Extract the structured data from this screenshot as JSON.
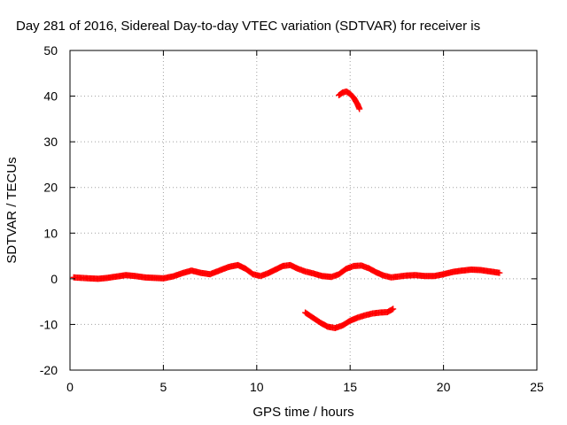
{
  "chart_data": {
    "type": "scatter",
    "title": "Day 281 of 2016, Sidereal Day-to-day VTEC variation (SDTVAR) for receiver is",
    "xlabel": "GPS time / hours",
    "ylabel": "SDTVAR / TECUs",
    "xlim": [
      0,
      25
    ],
    "ylim": [
      -20,
      50
    ],
    "xticks": [
      0,
      5,
      10,
      15,
      20,
      25
    ],
    "yticks": [
      -20,
      -10,
      0,
      10,
      20,
      30,
      40,
      50
    ],
    "xtick_labels": [
      "0",
      "5",
      "10",
      "15",
      "20",
      "25"
    ],
    "ytick_labels": [
      "-20",
      "-10",
      "0",
      "10",
      "20",
      "30",
      "40",
      "50"
    ],
    "grid": true,
    "marker": "plus",
    "color": "#ff0000",
    "series": [
      {
        "name": "main",
        "points": [
          [
            0.2,
            0.3
          ],
          [
            0.6,
            0.2
          ],
          [
            1.0,
            0.1
          ],
          [
            1.5,
            0.0
          ],
          [
            2.0,
            0.2
          ],
          [
            2.5,
            0.5
          ],
          [
            3.0,
            0.8
          ],
          [
            3.5,
            0.6
          ],
          [
            4.0,
            0.3
          ],
          [
            4.5,
            0.2
          ],
          [
            5.0,
            0.1
          ],
          [
            5.5,
            0.5
          ],
          [
            6.0,
            1.2
          ],
          [
            6.5,
            1.8
          ],
          [
            7.0,
            1.3
          ],
          [
            7.5,
            1.0
          ],
          [
            8.0,
            1.8
          ],
          [
            8.5,
            2.6
          ],
          [
            9.0,
            3.0
          ],
          [
            9.4,
            2.2
          ],
          [
            9.8,
            1.0
          ],
          [
            10.2,
            0.6
          ],
          [
            10.6,
            1.2
          ],
          [
            11.0,
            2.0
          ],
          [
            11.4,
            2.8
          ],
          [
            11.8,
            3.0
          ],
          [
            12.2,
            2.2
          ],
          [
            12.6,
            1.6
          ],
          [
            13.0,
            1.2
          ],
          [
            13.5,
            0.6
          ],
          [
            14.0,
            0.4
          ],
          [
            14.4,
            1.0
          ],
          [
            14.8,
            2.2
          ],
          [
            15.2,
            2.8
          ],
          [
            15.6,
            2.9
          ],
          [
            16.0,
            2.3
          ],
          [
            16.4,
            1.4
          ],
          [
            16.8,
            0.7
          ],
          [
            17.2,
            0.3
          ],
          [
            17.6,
            0.5
          ],
          [
            18.0,
            0.7
          ],
          [
            18.5,
            0.8
          ],
          [
            19.0,
            0.6
          ],
          [
            19.5,
            0.6
          ],
          [
            20.0,
            1.0
          ],
          [
            20.5,
            1.5
          ],
          [
            21.0,
            1.8
          ],
          [
            21.5,
            2.0
          ],
          [
            22.0,
            1.9
          ],
          [
            22.5,
            1.6
          ],
          [
            23.0,
            1.3
          ]
        ]
      },
      {
        "name": "upper-arc",
        "points": [
          [
            14.4,
            40.2
          ],
          [
            14.6,
            40.8
          ],
          [
            14.8,
            41.0
          ],
          [
            15.0,
            40.5
          ],
          [
            15.2,
            39.6
          ],
          [
            15.4,
            38.2
          ],
          [
            15.5,
            37.2
          ]
        ]
      },
      {
        "name": "lower-arc",
        "points": [
          [
            12.6,
            -7.4
          ],
          [
            13.0,
            -8.5
          ],
          [
            13.4,
            -9.6
          ],
          [
            13.8,
            -10.5
          ],
          [
            14.2,
            -10.8
          ],
          [
            14.6,
            -10.2
          ],
          [
            15.0,
            -9.2
          ],
          [
            15.4,
            -8.5
          ],
          [
            15.8,
            -8.0
          ],
          [
            16.2,
            -7.6
          ],
          [
            16.6,
            -7.4
          ],
          [
            17.0,
            -7.3
          ],
          [
            17.3,
            -6.6
          ]
        ]
      }
    ]
  }
}
